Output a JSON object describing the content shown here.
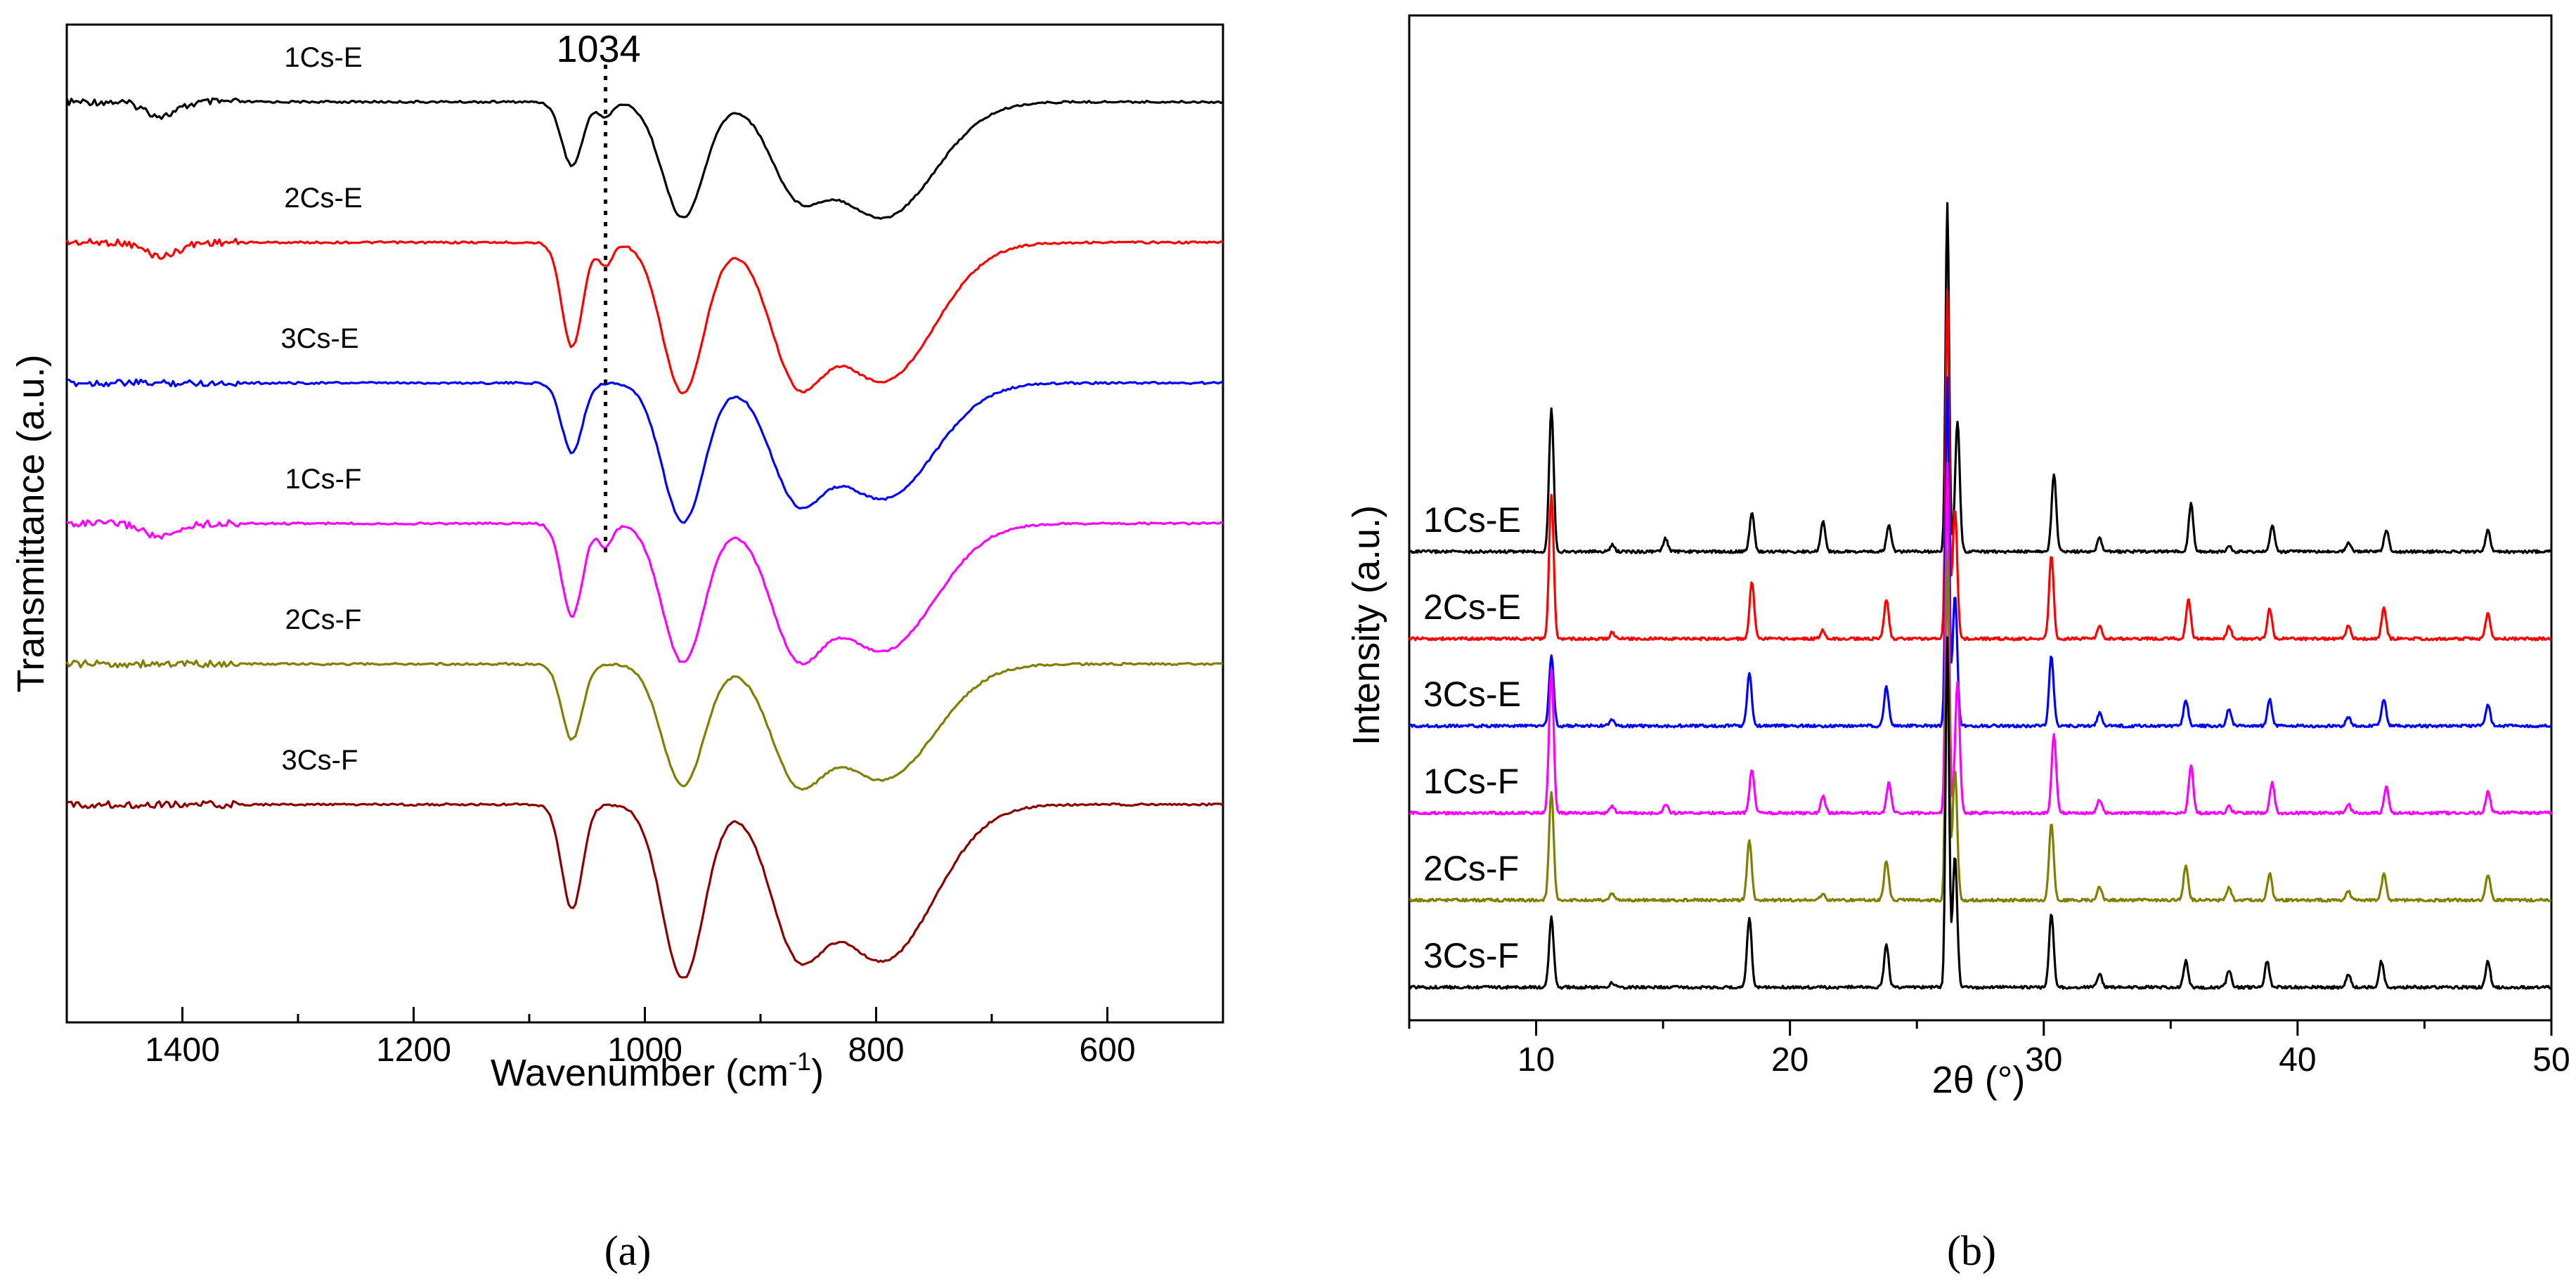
{
  "chart_data": [
    {
      "panel": "a",
      "type": "line",
      "caption": "(a)",
      "xlabel": "Wavenumber (cm",
      "xlabel_sup": "-1",
      "xlabel_close": ")",
      "ylabel": "Transmittance (a.u.)",
      "xlim": [
        1500,
        500
      ],
      "x_reversed": true,
      "yticks_shown": false,
      "xticks": [
        1400,
        1200,
        1000,
        800,
        600
      ],
      "annotation": {
        "text": "1034",
        "x": 1034,
        "style": "dotted vertical line"
      },
      "series": [
        {
          "name": "1Cs-E",
          "color": "#000000",
          "baseline": 0.0,
          "peaks": [
            {
              "x": 1418,
              "depth": 0.12,
              "w": 14
            },
            {
              "x": 1063,
              "depth": 0.55,
              "w": 9
            },
            {
              "x": 1034,
              "depth": 0.13,
              "w": 6
            },
            {
              "x": 967,
              "depth": 1.0,
              "w": 18
            },
            {
              "x": 870,
              "depth": 0.6,
              "w": 22
            },
            {
              "x": 795,
              "depth": 1.0,
              "w": 45
            }
          ]
        },
        {
          "name": "2Cs-E",
          "color": "#ff0000",
          "baseline": 1.0,
          "peaks": [
            {
              "x": 1418,
              "depth": 0.12,
              "w": 14
            },
            {
              "x": 1063,
              "depth": 0.9,
              "w": 9
            },
            {
              "x": 1034,
              "depth": 0.2,
              "w": 6
            },
            {
              "x": 967,
              "depth": 1.3,
              "w": 18
            },
            {
              "x": 870,
              "depth": 0.95,
              "w": 22
            },
            {
              "x": 795,
              "depth": 1.2,
              "w": 45
            }
          ]
        },
        {
          "name": "3Cs-E",
          "color": "#0000ff",
          "baseline": 2.0,
          "peaks": [
            {
              "x": 1063,
              "depth": 0.6,
              "w": 9
            },
            {
              "x": 967,
              "depth": 1.2,
              "w": 18
            },
            {
              "x": 870,
              "depth": 0.8,
              "w": 22
            },
            {
              "x": 795,
              "depth": 1.0,
              "w": 45
            }
          ]
        },
        {
          "name": "1Cs-F",
          "color": "#ff00ff",
          "baseline": 3.0,
          "peaks": [
            {
              "x": 1418,
              "depth": 0.12,
              "w": 14
            },
            {
              "x": 1063,
              "depth": 0.8,
              "w": 9
            },
            {
              "x": 1034,
              "depth": 0.2,
              "w": 6
            },
            {
              "x": 967,
              "depth": 1.2,
              "w": 18
            },
            {
              "x": 870,
              "depth": 0.9,
              "w": 22
            },
            {
              "x": 795,
              "depth": 1.1,
              "w": 45
            }
          ]
        },
        {
          "name": "2Cs-F",
          "color": "#808000",
          "baseline": 4.0,
          "peaks": [
            {
              "x": 1063,
              "depth": 0.65,
              "w": 9
            },
            {
              "x": 967,
              "depth": 1.05,
              "w": 18
            },
            {
              "x": 870,
              "depth": 0.8,
              "w": 22
            },
            {
              "x": 795,
              "depth": 1.0,
              "w": 45
            }
          ]
        },
        {
          "name": "3Cs-F",
          "color": "#8b0000",
          "baseline": 5.0,
          "peaks": [
            {
              "x": 1063,
              "depth": 0.9,
              "w": 9
            },
            {
              "x": 967,
              "depth": 1.5,
              "w": 18
            },
            {
              "x": 870,
              "depth": 1.0,
              "w": 22
            },
            {
              "x": 795,
              "depth": 1.35,
              "w": 45
            }
          ]
        }
      ]
    },
    {
      "panel": "b",
      "type": "line",
      "caption": "(b)",
      "xlabel": "2θ (°)",
      "ylabel": "Intensity (a.u.)",
      "xlim": [
        5,
        50
      ],
      "xticks": [
        10,
        20,
        30,
        40,
        50
      ],
      "yticks_shown": false,
      "series": [
        {
          "name": "1Cs-E",
          "color": "#000000",
          "baseline": 5,
          "peaks": [
            {
              "x": 10.6,
              "h": 3.3
            },
            {
              "x": 13.0,
              "h": 0.15
            },
            {
              "x": 15.1,
              "h": 0.3
            },
            {
              "x": 18.5,
              "h": 0.9
            },
            {
              "x": 21.3,
              "h": 0.7
            },
            {
              "x": 23.9,
              "h": 0.6
            },
            {
              "x": 26.2,
              "h": 8
            },
            {
              "x": 26.6,
              "h": 3
            },
            {
              "x": 30.4,
              "h": 1.8
            },
            {
              "x": 32.2,
              "h": 0.3
            },
            {
              "x": 35.8,
              "h": 1.1
            },
            {
              "x": 37.3,
              "h": 0.15
            },
            {
              "x": 39.0,
              "h": 0.6
            },
            {
              "x": 42.0,
              "h": 0.2
            },
            {
              "x": 43.5,
              "h": 0.5
            },
            {
              "x": 47.5,
              "h": 0.5
            }
          ]
        },
        {
          "name": "2Cs-E",
          "color": "#ff0000",
          "baseline": 4,
          "peaks": [
            {
              "x": 10.6,
              "h": 3.3
            },
            {
              "x": 13.0,
              "h": 0.15
            },
            {
              "x": 18.5,
              "h": 1.3
            },
            {
              "x": 21.3,
              "h": 0.2
            },
            {
              "x": 23.8,
              "h": 0.9
            },
            {
              "x": 26.2,
              "h": 8
            },
            {
              "x": 26.5,
              "h": 3
            },
            {
              "x": 30.3,
              "h": 1.9
            },
            {
              "x": 32.2,
              "h": 0.3
            },
            {
              "x": 35.7,
              "h": 0.9
            },
            {
              "x": 37.3,
              "h": 0.3
            },
            {
              "x": 38.9,
              "h": 0.7
            },
            {
              "x": 42.0,
              "h": 0.3
            },
            {
              "x": 43.4,
              "h": 0.7
            },
            {
              "x": 47.5,
              "h": 0.6
            }
          ]
        },
        {
          "name": "3Cs-E",
          "color": "#0000ff",
          "baseline": 3,
          "peaks": [
            {
              "x": 10.6,
              "h": 1.6
            },
            {
              "x": 13.0,
              "h": 0.15
            },
            {
              "x": 18.4,
              "h": 1.2
            },
            {
              "x": 23.8,
              "h": 0.9
            },
            {
              "x": 26.2,
              "h": 8
            },
            {
              "x": 26.5,
              "h": 3
            },
            {
              "x": 30.3,
              "h": 1.6
            },
            {
              "x": 32.2,
              "h": 0.3
            },
            {
              "x": 35.6,
              "h": 0.6
            },
            {
              "x": 37.3,
              "h": 0.4
            },
            {
              "x": 38.9,
              "h": 0.6
            },
            {
              "x": 42.0,
              "h": 0.2
            },
            {
              "x": 43.4,
              "h": 0.6
            },
            {
              "x": 47.5,
              "h": 0.5
            }
          ]
        },
        {
          "name": "1Cs-F",
          "color": "#ff00ff",
          "baseline": 2,
          "peaks": [
            {
              "x": 10.6,
              "h": 3.3
            },
            {
              "x": 13.0,
              "h": 0.15
            },
            {
              "x": 15.1,
              "h": 0.2
            },
            {
              "x": 18.5,
              "h": 1.0
            },
            {
              "x": 21.3,
              "h": 0.4
            },
            {
              "x": 23.9,
              "h": 0.7
            },
            {
              "x": 26.2,
              "h": 8
            },
            {
              "x": 26.6,
              "h": 3
            },
            {
              "x": 30.4,
              "h": 1.8
            },
            {
              "x": 32.2,
              "h": 0.3
            },
            {
              "x": 35.8,
              "h": 1.1
            },
            {
              "x": 37.3,
              "h": 0.15
            },
            {
              "x": 39.0,
              "h": 0.7
            },
            {
              "x": 42.0,
              "h": 0.2
            },
            {
              "x": 43.5,
              "h": 0.6
            },
            {
              "x": 47.5,
              "h": 0.5
            }
          ]
        },
        {
          "name": "2Cs-F",
          "color": "#808000",
          "baseline": 1,
          "peaks": [
            {
              "x": 10.6,
              "h": 2.5
            },
            {
              "x": 13.0,
              "h": 0.15
            },
            {
              "x": 18.4,
              "h": 1.4
            },
            {
              "x": 21.3,
              "h": 0.15
            },
            {
              "x": 23.8,
              "h": 0.9
            },
            {
              "x": 26.2,
              "h": 8
            },
            {
              "x": 26.5,
              "h": 3
            },
            {
              "x": 30.3,
              "h": 1.8
            },
            {
              "x": 32.2,
              "h": 0.3
            },
            {
              "x": 35.6,
              "h": 0.8
            },
            {
              "x": 37.3,
              "h": 0.3
            },
            {
              "x": 38.9,
              "h": 0.6
            },
            {
              "x": 42.0,
              "h": 0.2
            },
            {
              "x": 43.4,
              "h": 0.6
            },
            {
              "x": 47.5,
              "h": 0.6
            }
          ]
        },
        {
          "name": "3Cs-F",
          "color": "#000000",
          "baseline": 0,
          "peaks": [
            {
              "x": 10.6,
              "h": 1.6
            },
            {
              "x": 13.0,
              "h": 0.1
            },
            {
              "x": 18.4,
              "h": 1.6
            },
            {
              "x": 23.8,
              "h": 1.0
            },
            {
              "x": 26.2,
              "h": 8
            },
            {
              "x": 26.5,
              "h": 3
            },
            {
              "x": 30.3,
              "h": 1.7
            },
            {
              "x": 32.2,
              "h": 0.3
            },
            {
              "x": 35.6,
              "h": 0.6
            },
            {
              "x": 37.3,
              "h": 0.4
            },
            {
              "x": 38.8,
              "h": 0.6
            },
            {
              "x": 42.0,
              "h": 0.3
            },
            {
              "x": 43.3,
              "h": 0.6
            },
            {
              "x": 47.5,
              "h": 0.6
            }
          ]
        }
      ]
    }
  ]
}
